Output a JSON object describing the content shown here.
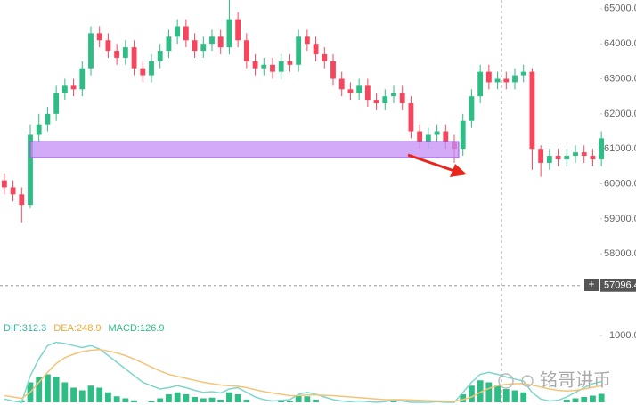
{
  "chart_data": [
    {
      "type": "candlestick",
      "up_color": "#2ebd85",
      "down_color": "#f6465d",
      "ylim": [
        56480,
        65250
      ],
      "yticks": [
        {
          "value": 65000,
          "label": "65000.0"
        },
        {
          "value": 64000,
          "label": "64000.0"
        },
        {
          "value": 63000,
          "label": "63000.0"
        },
        {
          "value": 62000,
          "label": "62000.0"
        },
        {
          "value": 61000,
          "label": "61000.0"
        },
        {
          "value": 60000,
          "label": "60000.0"
        },
        {
          "value": 59000,
          "label": "59000.0"
        },
        {
          "value": 58000,
          "label": "58000.0"
        }
      ],
      "crosshair": {
        "value": 57096.4,
        "label": "57096.4"
      },
      "open": [
        60100,
        59900,
        59700,
        59400,
        61400,
        61700,
        62000,
        62600,
        62800,
        62700,
        63300,
        64300,
        64100,
        63800,
        63600,
        63900,
        63300,
        63100,
        63500,
        63800,
        64200,
        64500,
        64100,
        63800,
        64000,
        64200,
        63900,
        64700,
        64100,
        63500,
        63300,
        63400,
        63200,
        63500,
        63400,
        64200,
        64000,
        63700,
        63500,
        63000,
        62700,
        62600,
        62800,
        62400,
        62300,
        62500,
        62600,
        62300,
        61500,
        61200,
        61400,
        61500,
        61200,
        61000,
        61800,
        62500,
        63200,
        62900,
        63000,
        62900,
        63100,
        63200,
        61000,
        60600,
        60800,
        60700,
        60800,
        60900,
        60800,
        60700
      ],
      "high": [
        60300,
        60100,
        59900,
        61700,
        62000,
        62200,
        62800,
        63000,
        63000,
        63500,
        64500,
        64500,
        64300,
        64000,
        64100,
        64100,
        63500,
        63700,
        64000,
        64400,
        64700,
        64700,
        64300,
        64200,
        64400,
        64400,
        65250,
        64900,
        64300,
        63700,
        63600,
        63600,
        63700,
        63700,
        64400,
        64400,
        64200,
        63900,
        63700,
        63200,
        62900,
        63000,
        63000,
        62600,
        62700,
        62800,
        62800,
        62500,
        61700,
        61600,
        61700,
        61700,
        61400,
        62000,
        62700,
        63400,
        63400,
        63200,
        63200,
        63300,
        63400,
        63300,
        61100,
        61000,
        61000,
        61000,
        61100,
        61100,
        61000,
        61500
      ],
      "low": [
        59700,
        59500,
        58900,
        59300,
        61200,
        61500,
        61800,
        62400,
        62500,
        62500,
        63100,
        63900,
        63600,
        63400,
        63400,
        63100,
        62900,
        62900,
        63300,
        63600,
        64000,
        63900,
        63600,
        63600,
        63800,
        63700,
        63700,
        63900,
        63300,
        63100,
        63100,
        63000,
        63000,
        63200,
        63200,
        63800,
        63500,
        63300,
        62800,
        62500,
        62400,
        62400,
        62200,
        62100,
        62100,
        62300,
        62100,
        61300,
        61000,
        61000,
        61200,
        61000,
        60600,
        60800,
        61600,
        62300,
        62700,
        62700,
        62700,
        62700,
        62900,
        60400,
        60200,
        60400,
        60500,
        60500,
        60600,
        60600,
        60500,
        60500
      ],
      "close": [
        59900,
        59700,
        59400,
        61400,
        61700,
        62000,
        62600,
        62800,
        62700,
        63300,
        64300,
        64100,
        63800,
        63600,
        63900,
        63300,
        63100,
        63500,
        63800,
        64200,
        64500,
        64100,
        63800,
        64000,
        64200,
        63900,
        64700,
        64100,
        63500,
        63300,
        63400,
        63200,
        63500,
        63400,
        64200,
        64000,
        63700,
        63500,
        63000,
        62700,
        62600,
        62800,
        62400,
        62300,
        62500,
        62600,
        62300,
        61500,
        61200,
        61400,
        61500,
        61200,
        61000,
        61800,
        62500,
        63200,
        62900,
        63000,
        62900,
        63100,
        63200,
        61000,
        60600,
        60800,
        60700,
        60800,
        60900,
        60800,
        60700,
        61300
      ]
    },
    {
      "type": "macd",
      "ylim": [
        -40,
        1360
      ],
      "yticks": [
        {
          "value": 1000,
          "label": "1000.0"
        }
      ],
      "legend_labels": [
        {
          "text": "DIF:312.3",
          "color": "#3bb3a4"
        },
        {
          "text": "DEA:248.9",
          "color": "#e9a93a"
        },
        {
          "text": "MACD:126.9",
          "color": "#2ebd85"
        }
      ],
      "histogram": {
        "color": "#2ebd85",
        "values": [
          0,
          0,
          30,
          300,
          380,
          420,
          380,
          300,
          220,
          180,
          250,
          220,
          150,
          90,
          60,
          30,
          0,
          20,
          60,
          120,
          150,
          120,
          80,
          60,
          70,
          40,
          150,
          120,
          40,
          0,
          0,
          0,
          20,
          20,
          100,
          90,
          40,
          0,
          0,
          0,
          0,
          0,
          0,
          0,
          0,
          20,
          0,
          0,
          0,
          0,
          0,
          0,
          0,
          120,
          250,
          330,
          300,
          260,
          200,
          180,
          150,
          0,
          0,
          0,
          0,
          40,
          60,
          80,
          100,
          126.9
        ]
      },
      "series": [
        {
          "color": "#7fd6cc",
          "values": [
            50,
            20,
            0,
            400,
            650,
            850,
            900,
            880,
            850,
            820,
            850,
            800,
            700,
            600,
            500,
            400,
            300,
            250,
            200,
            220,
            250,
            220,
            180,
            150,
            160,
            140,
            200,
            220,
            150,
            80,
            40,
            20,
            30,
            40,
            120,
            150,
            120,
            80,
            40,
            20,
            10,
            20,
            10,
            0,
            10,
            40,
            20,
            0,
            0,
            0,
            10,
            0,
            0,
            150,
            300,
            420,
            450,
            420,
            380,
            350,
            320,
            150,
            50,
            20,
            30,
            80,
            150,
            220,
            280,
            312.3
          ]
        },
        {
          "color": "#f3c47a",
          "values": [
            100,
            80,
            60,
            150,
            300,
            450,
            580,
            670,
            720,
            760,
            780,
            790,
            770,
            740,
            700,
            650,
            590,
            530,
            470,
            420,
            390,
            360,
            330,
            300,
            280,
            260,
            250,
            240,
            220,
            190,
            160,
            140,
            120,
            100,
            100,
            110,
            110,
            105,
            100,
            90,
            80,
            70,
            60,
            50,
            40,
            40,
            40,
            35,
            30,
            25,
            20,
            20,
            15,
            40,
            80,
            150,
            210,
            250,
            270,
            280,
            280,
            260,
            230,
            200,
            180,
            170,
            180,
            200,
            225,
            248.9
          ]
        }
      ]
    }
  ],
  "watermark": "铭哥讲币"
}
